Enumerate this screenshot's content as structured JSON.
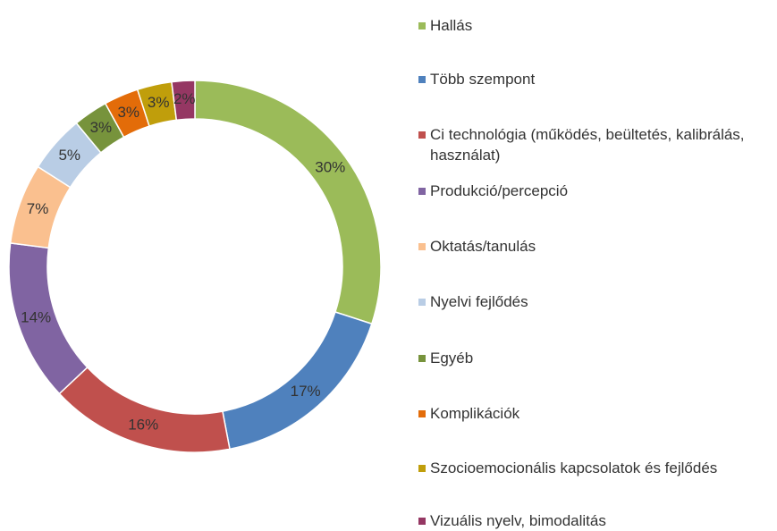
{
  "chart_data": {
    "type": "donut",
    "categories": [
      "Hallás",
      "Több szempont",
      "Ci technológia (működés, beültetés, kalibrálás, használat)",
      "Produkció/percepció",
      "Oktatás/tanulás",
      "Nyelvi fejlődés",
      "Egyéb",
      "Komplikációk",
      "Szocioemocionális kapcsolatok és fejlődés",
      "Vizuális nyelv, bimodalitás"
    ],
    "values": [
      30,
      17,
      16,
      14,
      7,
      5,
      3,
      3,
      3,
      2
    ],
    "value_labels": [
      "30%",
      "17%",
      "16%",
      "14%",
      "7%",
      "5%",
      "3%",
      "3%",
      "3%",
      "2%"
    ],
    "colors": [
      "#9bbb59",
      "#4f81bd",
      "#c0504d",
      "#8064a2",
      "#fac08f",
      "#b9cde5",
      "#77933c",
      "#e36c09",
      "#c09e0b",
      "#953763"
    ],
    "legend": "right"
  }
}
